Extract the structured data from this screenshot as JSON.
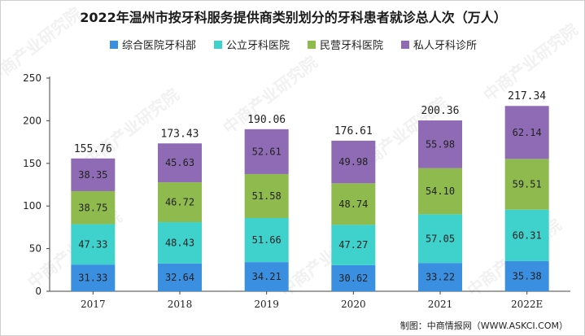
{
  "chart_data": {
    "type": "bar",
    "stacked": true,
    "title": "2022年温州市按牙科服务提供商类别划分的牙科患者就诊总人次（万人）",
    "categories": [
      "2017",
      "2018",
      "2019",
      "2020",
      "2021",
      "2022E"
    ],
    "series": [
      {
        "name": "综合医院牙科部",
        "color": "#3b8fe0",
        "values": [
          31.33,
          32.64,
          34.21,
          30.62,
          33.22,
          35.38
        ]
      },
      {
        "name": "公立牙科医院",
        "color": "#3fd1cc",
        "values": [
          47.33,
          48.43,
          51.66,
          47.27,
          57.05,
          60.31
        ]
      },
      {
        "name": "民营牙科医院",
        "color": "#8fba4d",
        "values": [
          38.75,
          46.72,
          51.58,
          48.74,
          54.1,
          59.51
        ]
      },
      {
        "name": "私人牙科诊所",
        "color": "#8e6bb4",
        "values": [
          38.35,
          45.63,
          52.61,
          49.98,
          55.98,
          62.14
        ]
      }
    ],
    "totals": [
      "155.76",
      "173.43",
      "190.06",
      "176.61",
      "200.36",
      "217.34"
    ],
    "value_labels": [
      [
        "31.33",
        "32.64",
        "34.21",
        "30.62",
        "33.22",
        "35.38"
      ],
      [
        "47.33",
        "48.43",
        "51.66",
        "47.27",
        "57.05",
        "60.31"
      ],
      [
        "38.75",
        "46.72",
        "51.58",
        "48.74",
        "54.10",
        "59.51"
      ],
      [
        "38.35",
        "45.63",
        "52.61",
        "49.98",
        "55.98",
        "62.14"
      ]
    ],
    "y_ticks": [
      "0",
      "50",
      "100",
      "150",
      "200",
      "250"
    ],
    "ylim": [
      0,
      250
    ],
    "grid": false,
    "legend_position": "top"
  },
  "source": "制图：中商情报网（WWW.ASKCI.COM）",
  "watermark": "中商产业研究院"
}
